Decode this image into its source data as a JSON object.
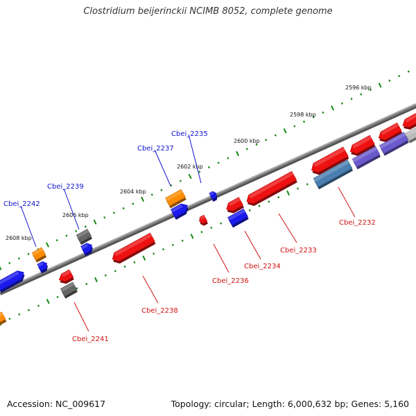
{
  "title": "Clostridium beijerinckii NCIMB 8052, complete genome",
  "footer": {
    "accession": "Accession: NC_009617",
    "summary": "Topology: circular; Length: 6,000,632 bp; Genes: 5,160"
  },
  "colors": {
    "forward_label": "#1010d0",
    "reverse_label": "#d01010",
    "backbone": "#7a7a7a",
    "tick": "#118811",
    "gene_red": "#ee1111",
    "gene_blue": "#1a1aee",
    "gene_orange": "#ff8c00",
    "gene_gray": "#666666",
    "gene_steel": "#4a7fb0",
    "gene_violet": "#6a5acd",
    "gene_light": "#bbbbbb"
  },
  "scale_labels": [
    "2596 kbp",
    "2598 kbp",
    "2600 kbp",
    "2602 kbp",
    "2604 kbp",
    "2606 kbp",
    "2608 kbp"
  ],
  "gene_labels": {
    "forward": [
      "Cbei_2235",
      "Cbei_2237",
      "Cbei_2239",
      "Cbei_2242"
    ],
    "reverse": [
      "Cbei_2232",
      "Cbei_2233",
      "Cbei_2234",
      "Cbei_2236",
      "Cbei_2238",
      "Cbei_2241"
    ]
  }
}
